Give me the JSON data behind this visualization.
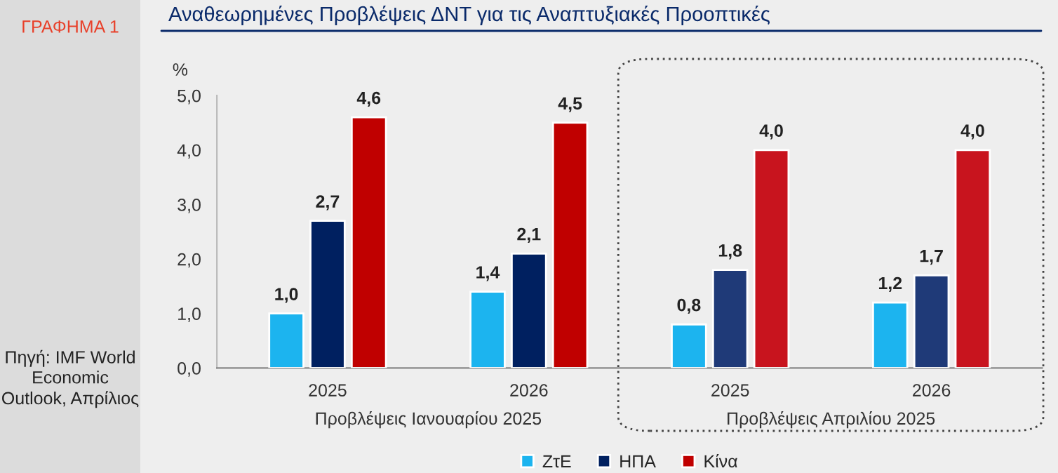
{
  "chart_data": {
    "type": "bar",
    "title": "Αναθεωρημένες Προβλέψεις ΔΝΤ για τις Αναπτυξιακές Προοπτικές",
    "ylabel": "%",
    "categories": [
      "2025",
      "2026",
      "2025",
      "2026"
    ],
    "series": [
      {
        "name": "ΖτΕ",
        "color": "#1cb4ef",
        "colors": [
          "#1cb4ef",
          "#1cb4ef",
          "#1cb4ef",
          "#1cb4ef"
        ],
        "values": [
          1.0,
          1.4,
          0.8,
          1.2
        ],
        "value_labels": [
          "1,0",
          "1,4",
          "0,8",
          "1,2"
        ]
      },
      {
        "name": "ΗΠΑ",
        "color": "#002060",
        "colors": [
          "#002060",
          "#002060",
          "#1f3a78",
          "#1f3a78"
        ],
        "values": [
          2.7,
          2.1,
          1.8,
          1.7
        ],
        "value_labels": [
          "2,7",
          "2,1",
          "1,8",
          "1,7"
        ]
      },
      {
        "name": "Κίνα",
        "color": "#c00000",
        "colors": [
          "#c00000",
          "#c00000",
          "#c8141e",
          "#c8141e"
        ],
        "values": [
          4.6,
          4.5,
          4.0,
          4.0
        ],
        "value_labels": [
          "4,6",
          "4,5",
          "4,0",
          "4,0"
        ]
      }
    ],
    "ylim": [
      0,
      5
    ],
    "yticks": [
      {
        "value": 0,
        "label": "0,0"
      },
      {
        "value": 1,
        "label": "1,0"
      },
      {
        "value": 2,
        "label": "2,0"
      },
      {
        "value": 3,
        "label": "3,0"
      },
      {
        "value": 4,
        "label": "4,0"
      },
      {
        "value": 5,
        "label": "5,0"
      }
    ],
    "grid": false,
    "legend": "bottom",
    "annotations": [
      "ΓΡΑΦΗΜΑ 1",
      "Πηγή: IMF World Economic Outlook, Απρίλιος",
      "Προβλέψεις Ιανουαρίου 2025",
      "Προβλέψεις Απριλίου 2025"
    ]
  }
}
